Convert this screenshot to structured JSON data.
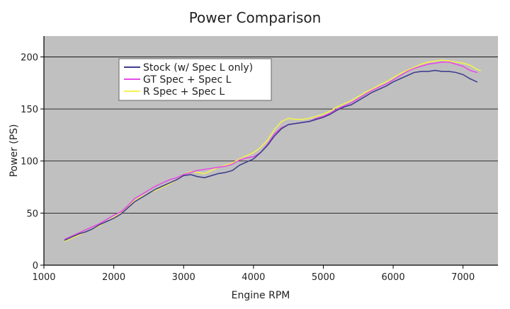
{
  "chart_data": {
    "type": "line",
    "title": "Power Comparison",
    "xlabel": "Engine RPM",
    "ylabel": "Power (PS)",
    "xlim": [
      1000,
      7500
    ],
    "ylim": [
      0,
      220
    ],
    "xticks": [
      1000,
      2000,
      3000,
      4000,
      5000,
      6000,
      7000
    ],
    "yticks": [
      0,
      50,
      100,
      150,
      200
    ],
    "xtick_labels": [
      "1000",
      "2000",
      "3000",
      "4000",
      "5000",
      "6000",
      "7000"
    ],
    "ytick_labels": [
      "0",
      "50",
      "100",
      "150",
      "200"
    ],
    "grid": "horizontal",
    "background": "#c0c0c0",
    "legend_position": "top-left",
    "series": [
      {
        "name": "Stock (w/ Spec L only)",
        "color": "#3f3f8f",
        "x": [
          1300,
          1400,
          1500,
          1600,
          1700,
          1800,
          1900,
          2000,
          2100,
          2200,
          2300,
          2400,
          2500,
          2600,
          2700,
          2800,
          2900,
          3000,
          3100,
          3200,
          3300,
          3400,
          3500,
          3600,
          3700,
          3800,
          3900,
          4000,
          4100,
          4200,
          4300,
          4400,
          4500,
          4600,
          4700,
          4800,
          4900,
          5000,
          5100,
          5200,
          5300,
          5400,
          5500,
          5600,
          5700,
          5800,
          5900,
          6000,
          6100,
          6200,
          6300,
          6400,
          6500,
          6600,
          6700,
          6800,
          6900,
          7000,
          7100,
          7200
        ],
        "values": [
          24,
          27,
          30,
          32,
          35,
          39,
          42,
          45,
          49,
          55,
          61,
          65,
          69,
          73,
          76,
          79,
          82,
          86,
          87,
          85,
          84,
          86,
          88,
          89,
          91,
          96,
          99,
          102,
          108,
          115,
          124,
          131,
          135,
          136,
          137,
          138,
          140,
          142,
          145,
          149,
          152,
          154,
          158,
          162,
          166,
          169,
          172,
          176,
          179,
          182,
          185,
          186,
          186,
          187,
          186,
          186,
          185,
          183,
          179,
          176
        ]
      },
      {
        "name": "GT Spec + Spec L",
        "color": "#e64ce6",
        "x": [
          1300,
          1400,
          1500,
          1600,
          1700,
          1800,
          1900,
          2000,
          2100,
          2200,
          2300,
          2400,
          2500,
          2600,
          2700,
          2800,
          2900,
          3000,
          3100,
          3200,
          3300,
          3400,
          3500,
          3600,
          3700,
          3800,
          3900,
          4000,
          4100,
          4200,
          4300,
          4400,
          4500,
          4600,
          4700,
          4800,
          4900,
          5000,
          5100,
          5200,
          5300,
          5400,
          5500,
          5600,
          5700,
          5800,
          5900,
          6000,
          6100,
          6200,
          6300,
          6400,
          6500,
          6600,
          6700,
          6800,
          6900,
          7000,
          7100,
          7200
        ],
        "values": [
          25,
          28,
          31,
          34,
          37,
          40,
          44,
          48,
          51,
          57,
          64,
          68,
          72,
          76,
          79,
          82,
          84,
          87,
          89,
          91,
          92,
          93,
          94,
          95,
          97,
          101,
          103,
          104,
          108,
          116,
          126,
          132,
          135,
          136,
          137,
          138,
          141,
          143,
          146,
          150,
          153,
          156,
          160,
          164,
          168,
          171,
          174,
          178,
          182,
          186,
          189,
          191,
          193,
          194,
          195,
          195,
          193,
          191,
          187,
          185
        ]
      },
      {
        "name": "R Spec + Spec L",
        "color": "#f2f250",
        "x": [
          1300,
          1400,
          1500,
          1600,
          1700,
          1800,
          1900,
          2000,
          2100,
          2200,
          2300,
          2400,
          2500,
          2600,
          2700,
          2800,
          2900,
          3000,
          3100,
          3200,
          3300,
          3400,
          3500,
          3600,
          3700,
          3800,
          3900,
          4000,
          4100,
          4200,
          4300,
          4400,
          4500,
          4600,
          4700,
          4800,
          4900,
          5000,
          5100,
          5200,
          5300,
          5400,
          5500,
          5600,
          5700,
          5800,
          5900,
          6000,
          6100,
          6200,
          6300,
          6400,
          6500,
          6600,
          6700,
          6800,
          6900,
          7000,
          7100,
          7200,
          7250
        ],
        "values": [
          23,
          26,
          29,
          32,
          35,
          38,
          42,
          46,
          50,
          56,
          62,
          66,
          69,
          72,
          75,
          78,
          82,
          87,
          90,
          89,
          88,
          91,
          94,
          96,
          98,
          102,
          105,
          108,
          113,
          120,
          130,
          138,
          141,
          140,
          140,
          141,
          143,
          145,
          148,
          152,
          155,
          158,
          162,
          166,
          169,
          173,
          176,
          180,
          184,
          187,
          190,
          193,
          195,
          196,
          197,
          196,
          195,
          194,
          192,
          188,
          187
        ]
      }
    ]
  }
}
